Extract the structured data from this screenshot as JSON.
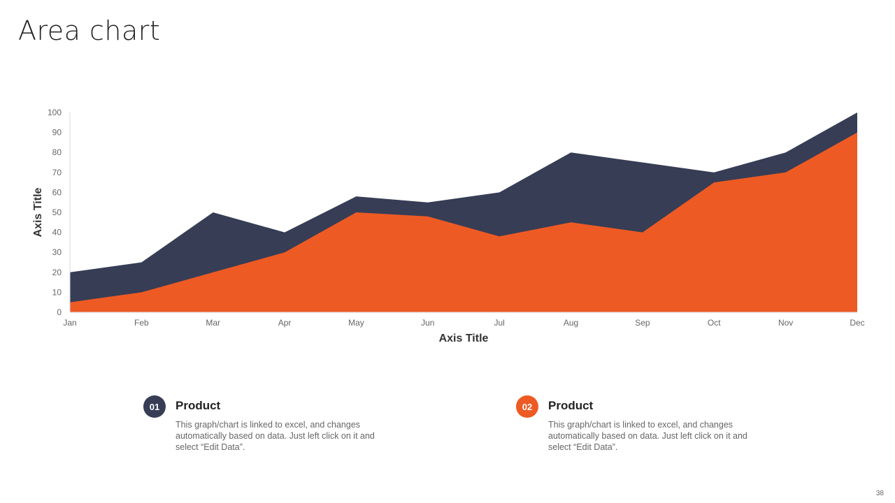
{
  "slide": {
    "title": "Area chart",
    "page_number": "38"
  },
  "colors": {
    "series1": "#363D55",
    "series2": "#EE5A24",
    "badge1": "#363D55",
    "badge2": "#EE5A24"
  },
  "chart_data": {
    "type": "area",
    "title": "",
    "xlabel": "Axis Title",
    "ylabel": "Axis Title",
    "ylim": [
      0,
      100
    ],
    "yticks": [
      0,
      10,
      20,
      30,
      40,
      50,
      60,
      70,
      80,
      90,
      100
    ],
    "categories": [
      "Jan",
      "Feb",
      "Mar",
      "Apr",
      "May",
      "Jun",
      "Jul",
      "Aug",
      "Sep",
      "Oct",
      "Nov",
      "Dec"
    ],
    "series": [
      {
        "name": "Product 01",
        "values": [
          20,
          25,
          50,
          40,
          58,
          55,
          60,
          80,
          75,
          70,
          80,
          100
        ]
      },
      {
        "name": "Product 02",
        "values": [
          5,
          10,
          20,
          30,
          50,
          48,
          38,
          45,
          40,
          65,
          70,
          90
        ]
      }
    ]
  },
  "legend": [
    {
      "number": "01",
      "heading": "Product",
      "text": "This graph/chart is linked to excel, and changes automatically based on data. Just left click on it and select “Edit Data”."
    },
    {
      "number": "02",
      "heading": "Product",
      "text": "This graph/chart is linked to excel, and changes automatically based on data. Just left click on it and select “Edit Data”."
    }
  ]
}
